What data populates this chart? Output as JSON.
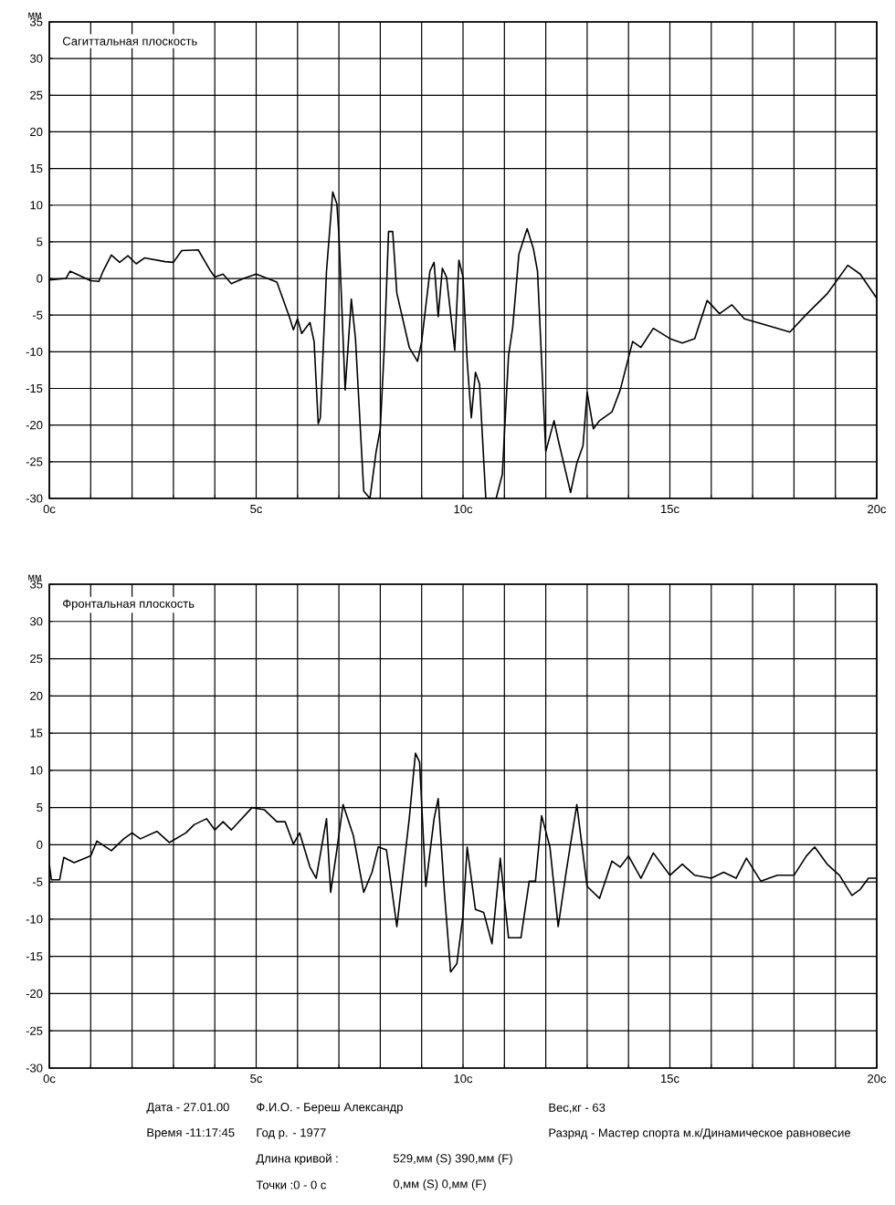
{
  "chart_data": [
    {
      "type": "line",
      "title": "Сагиттальная плоскость",
      "ylabel": "мм",
      "grid": true,
      "marker": "none",
      "line_style": "solid",
      "xlim": [
        0,
        20
      ],
      "ylim": [
        -30,
        35
      ],
      "xticks": [
        {
          "value": 0,
          "label": "0с"
        },
        {
          "value": 1,
          "label": null
        },
        {
          "value": 2,
          "label": null
        },
        {
          "value": 3,
          "label": null
        },
        {
          "value": 4,
          "label": null
        },
        {
          "value": 5,
          "label": "5с"
        },
        {
          "value": 6,
          "label": null
        },
        {
          "value": 7,
          "label": null
        },
        {
          "value": 8,
          "label": null
        },
        {
          "value": 9,
          "label": null
        },
        {
          "value": 10,
          "label": "10с"
        },
        {
          "value": 11,
          "label": null
        },
        {
          "value": 12,
          "label": null
        },
        {
          "value": 13,
          "label": null
        },
        {
          "value": 14,
          "label": null
        },
        {
          "value": 15,
          "label": "15с"
        },
        {
          "value": 16,
          "label": null
        },
        {
          "value": 17,
          "label": null
        },
        {
          "value": 18,
          "label": null
        },
        {
          "value": 19,
          "label": null
        },
        {
          "value": 20,
          "label": "20с"
        }
      ],
      "yticks": [
        -30,
        -25,
        -20,
        -15,
        -10,
        -5,
        0,
        5,
        10,
        15,
        20,
        25,
        30,
        35
      ],
      "series": [
        {
          "color": "#000000",
          "x": [
            0,
            0.4,
            0.5,
            1.0,
            1.2,
            1.3,
            1.5,
            1.7,
            1.9,
            2.1,
            2.3,
            2.8,
            3.0,
            3.2,
            3.6,
            3.9,
            4.0,
            4.2,
            4.4,
            4.7,
            5.0,
            5.5,
            5.8,
            5.9,
            6.0,
            6.1,
            6.3,
            6.4,
            6.5,
            6.55,
            6.7,
            6.85,
            6.95,
            7.0,
            7.15,
            7.3,
            7.4,
            7.6,
            7.75,
            7.9,
            8.0,
            8.1,
            8.2,
            8.3,
            8.4,
            8.7,
            8.9,
            9.0,
            9.2,
            9.3,
            9.4,
            9.5,
            9.6,
            9.8,
            9.9,
            10.0,
            10.1,
            10.2,
            10.3,
            10.4,
            10.55,
            10.8,
            10.95,
            11.1,
            11.2,
            11.35,
            11.55,
            11.7,
            11.8,
            12.0,
            12.2,
            12.3,
            12.6,
            12.75,
            12.9,
            13.0,
            13.15,
            13.3,
            13.6,
            13.8,
            14.1,
            14.3,
            14.6,
            15.0,
            15.3,
            15.6,
            15.9,
            16.2,
            16.5,
            16.8,
            17.3,
            17.9,
            18.3,
            18.8,
            19.3,
            19.6,
            20.0
          ],
          "values": [
            -0.2,
            0,
            1,
            -0.3,
            -0.4,
            1,
            3.2,
            2.2,
            3.1,
            2,
            2.8,
            2.3,
            2.2,
            3.8,
            3.9,
            1,
            0.2,
            0.6,
            -0.7,
            0,
            0.6,
            -0.5,
            -5.2,
            -7,
            -5.5,
            -7.5,
            -6,
            -8.6,
            -19.8,
            -19,
            1,
            11.8,
            10.2,
            6,
            -15.2,
            -2.8,
            -8.2,
            -29,
            -30,
            -23.6,
            -20.5,
            -9,
            6.4,
            6.4,
            -2,
            -9.4,
            -11.3,
            -8.6,
            1,
            2.2,
            -5.2,
            1.4,
            0.2,
            -9.8,
            2.5,
            0.2,
            -11.3,
            -19,
            -12.8,
            -14.4,
            -30,
            -30,
            -26.7,
            -10.5,
            -6.7,
            3.3,
            6.8,
            4.1,
            1,
            -23.6,
            -19.4,
            -22,
            -29.2,
            -25.2,
            -22.8,
            -15.5,
            -20.5,
            -19.4,
            -18.2,
            -15.2,
            -8.6,
            -9.4,
            -6.8,
            -8.2,
            -8.8,
            -8.2,
            -3,
            -4.8,
            -3.6,
            -5.5,
            -6.3,
            -7.3,
            -4.9,
            -2.1,
            1.8,
            0.6,
            -2.7
          ]
        }
      ]
    },
    {
      "type": "line",
      "title": "Фронтальная плоскость",
      "ylabel": "мм",
      "grid": true,
      "marker": "none",
      "line_style": "solid",
      "xlim": [
        0,
        20
      ],
      "ylim": [
        -30,
        35
      ],
      "xticks": [
        {
          "value": 0,
          "label": "0с"
        },
        {
          "value": 1,
          "label": null
        },
        {
          "value": 2,
          "label": null
        },
        {
          "value": 3,
          "label": null
        },
        {
          "value": 4,
          "label": null
        },
        {
          "value": 5,
          "label": "5с"
        },
        {
          "value": 6,
          "label": null
        },
        {
          "value": 7,
          "label": null
        },
        {
          "value": 8,
          "label": null
        },
        {
          "value": 9,
          "label": null
        },
        {
          "value": 10,
          "label": "10с"
        },
        {
          "value": 11,
          "label": null
        },
        {
          "value": 12,
          "label": null
        },
        {
          "value": 13,
          "label": null
        },
        {
          "value": 14,
          "label": null
        },
        {
          "value": 15,
          "label": "15с"
        },
        {
          "value": 16,
          "label": null
        },
        {
          "value": 17,
          "label": null
        },
        {
          "value": 18,
          "label": null
        },
        {
          "value": 19,
          "label": null
        },
        {
          "value": 20,
          "label": "20с"
        }
      ],
      "yticks": [
        -30,
        -25,
        -20,
        -15,
        -10,
        -5,
        0,
        5,
        10,
        15,
        20,
        25,
        30,
        35
      ],
      "series": [
        {
          "color": "#000000",
          "x": [
            0,
            0.05,
            0.25,
            0.35,
            0.6,
            1.0,
            1.15,
            1.5,
            1.8,
            2.0,
            2.2,
            2.6,
            2.9,
            3.3,
            3.5,
            3.8,
            4.0,
            4.2,
            4.4,
            4.9,
            5.2,
            5.5,
            5.7,
            5.9,
            6.05,
            6.3,
            6.45,
            6.7,
            6.8,
            6.95,
            7.1,
            7.35,
            7.6,
            7.8,
            7.95,
            8.15,
            8.4,
            8.7,
            8.85,
            8.95,
            9.1,
            9.3,
            9.4,
            9.55,
            9.7,
            9.85,
            10.0,
            10.1,
            10.3,
            10.5,
            10.7,
            10.9,
            11.1,
            11.4,
            11.6,
            11.75,
            11.9,
            12.1,
            12.3,
            12.5,
            12.75,
            13.0,
            13.3,
            13.6,
            13.8,
            14.0,
            14.3,
            14.6,
            15.0,
            15.3,
            15.6,
            16.0,
            16.3,
            16.6,
            16.85,
            17.2,
            17.6,
            18.0,
            18.3,
            18.5,
            18.8,
            19.1,
            19.4,
            19.6,
            19.8,
            20.0
          ],
          "values": [
            -2.6,
            -4.7,
            -4.7,
            -1.7,
            -2.4,
            -1.5,
            0.5,
            -0.8,
            0.8,
            1.6,
            0.8,
            1.8,
            0.3,
            1.6,
            2.7,
            3.5,
            2,
            3.1,
            2,
            5,
            4.7,
            3.1,
            3.1,
            0.1,
            1.6,
            -3,
            -4.5,
            3.5,
            -6.4,
            -0.7,
            5.4,
            1.2,
            -6.4,
            -3.7,
            -0.3,
            -0.7,
            -11,
            3.5,
            12.3,
            11.1,
            -5.6,
            3.5,
            6.2,
            -6.4,
            -17.1,
            -16,
            -9.5,
            -0.3,
            -8.7,
            -9.1,
            -13.3,
            -1.8,
            -12.5,
            -12.5,
            -4.9,
            -4.9,
            3.9,
            -0.3,
            -11,
            -3.4,
            5.4,
            -5.6,
            -7.2,
            -2.2,
            -3,
            -1.5,
            -4.5,
            -1.1,
            -4.1,
            -2.6,
            -4.1,
            -4.5,
            -3.7,
            -4.5,
            -1.8,
            -4.9,
            -4.1,
            -4.1,
            -1.5,
            -0.3,
            -2.6,
            -4.1,
            -6.8,
            -6,
            -4.5,
            -4.5
          ]
        }
      ],
      "annotations": [
        "Дата - 27.01.00",
        "Время -11:17:45",
        "Ф.И.О. - Береш Александр",
        "Год р. - 1977",
        "Длина кривой :",
        "Точки :0 - 0 с",
        "529,мм (S)  390,мм (F)",
        "0,мм (S)  0,мм (F)",
        "Вес,кг - 63",
        "Разряд - Мастер спорта м.к/Динамическое равновесие"
      ]
    }
  ]
}
